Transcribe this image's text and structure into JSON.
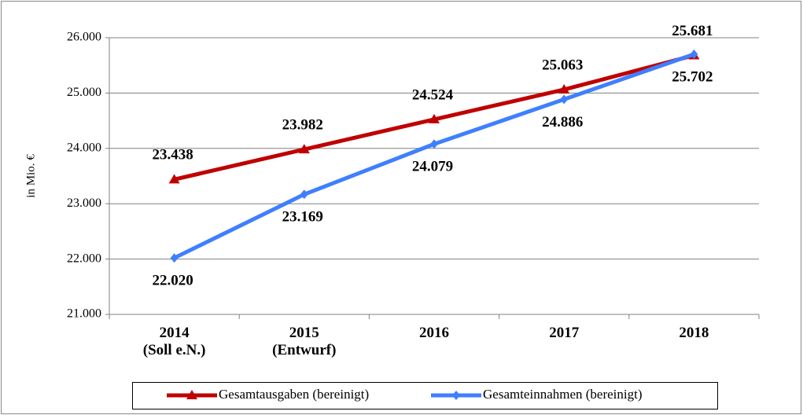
{
  "chart_data": {
    "type": "line",
    "y_label": "in Mio. €",
    "categories": [
      "2014\n(Soll e.N.)",
      "2015\n(Entwurf)",
      "2016",
      "2017",
      "2018"
    ],
    "series": [
      {
        "name": "Gesamtausgaben (bereinigt)",
        "color": "#c00000",
        "marker": "triangle",
        "values": [
          23438,
          23982,
          24524,
          25063,
          25681
        ],
        "value_labels": [
          "23.438",
          "23.982",
          "24.524",
          "25.063",
          "25.681"
        ]
      },
      {
        "name": "Gesamteinnahmen (bereinigt)",
        "color": "#3f7fff",
        "marker": "diamond",
        "values": [
          22020,
          23169,
          24079,
          24886,
          25702
        ],
        "value_labels": [
          "22.020",
          "23.169",
          "24.079",
          "24.886",
          "25.702"
        ]
      }
    ],
    "ylim": [
      21000,
      26000
    ],
    "yticks": [
      {
        "value": 21000,
        "label": "21.000"
      },
      {
        "value": 22000,
        "label": "22.000"
      },
      {
        "value": 23000,
        "label": "23.000"
      },
      {
        "value": 24000,
        "label": "24.000"
      },
      {
        "value": 25000,
        "label": "25.000"
      },
      {
        "value": 26000,
        "label": "26.000"
      }
    ],
    "grid": true,
    "legend": "bottom"
  }
}
